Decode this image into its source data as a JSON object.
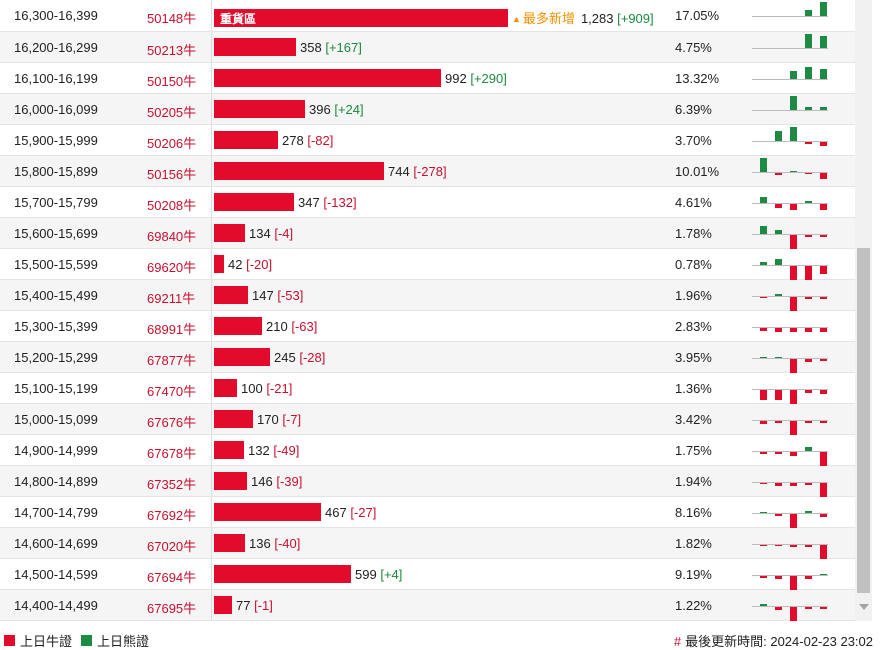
{
  "max_quantity": 1283,
  "colors": {
    "bull": "#e30b2b",
    "bear": "#1e8b45",
    "code": "#c8102e",
    "badge": "#f29100"
  },
  "rows": [
    {
      "range": "16,300-16,399",
      "code": "50148牛",
      "quantity": 1283,
      "qty_text": "1,283",
      "change": "[+909]",
      "dir": "up",
      "pct": "17.05%",
      "zone": "重貨區",
      "badge": "最多新增",
      "spark": [
        [
          "n",
          0
        ],
        [
          "n",
          0
        ],
        [
          "n",
          0
        ],
        [
          "g",
          6
        ],
        [
          "g",
          14
        ]
      ]
    },
    {
      "range": "16,200-16,299",
      "code": "50213牛",
      "quantity": 358,
      "qty_text": "358",
      "change": "[+167]",
      "dir": "up",
      "pct": "4.75%",
      "spark": [
        [
          "n",
          0
        ],
        [
          "n",
          0
        ],
        [
          "n",
          0
        ],
        [
          "g",
          14
        ],
        [
          "g",
          12
        ]
      ]
    },
    {
      "range": "16,100-16,199",
      "code": "50150牛",
      "quantity": 992,
      "qty_text": "992",
      "change": "[+290]",
      "dir": "up",
      "pct": "13.32%",
      "spark": [
        [
          "n",
          0
        ],
        [
          "n",
          0
        ],
        [
          "g",
          8
        ],
        [
          "g",
          12
        ],
        [
          "g",
          10
        ]
      ]
    },
    {
      "range": "16,000-16,099",
      "code": "50205牛",
      "quantity": 396,
      "qty_text": "396",
      "change": "[+24]",
      "dir": "up",
      "pct": "6.39%",
      "spark": [
        [
          "n",
          0
        ],
        [
          "n",
          0
        ],
        [
          "g",
          14
        ],
        [
          "g",
          3
        ],
        [
          "g",
          3
        ]
      ]
    },
    {
      "range": "15,900-15,999",
      "code": "50206牛",
      "quantity": 278,
      "qty_text": "278",
      "change": "[-82]",
      "dir": "dn",
      "pct": "3.70%",
      "spark": [
        [
          "n",
          0
        ],
        [
          "g",
          10
        ],
        [
          "g",
          14
        ],
        [
          "r",
          2
        ],
        [
          "r",
          4
        ]
      ]
    },
    {
      "range": "15,800-15,899",
      "code": "50156牛",
      "quantity": 744,
      "qty_text": "744",
      "change": "[-278]",
      "dir": "dn",
      "pct": "10.01%",
      "spark": [
        [
          "g",
          14
        ],
        [
          "r",
          2
        ],
        [
          "g",
          1
        ],
        [
          "r",
          1
        ],
        [
          "r",
          6
        ]
      ]
    },
    {
      "range": "15,700-15,799",
      "code": "50208牛",
      "quantity": 347,
      "qty_text": "347",
      "change": "[-132]",
      "dir": "dn",
      "pct": "4.61%",
      "spark": [
        [
          "g",
          6
        ],
        [
          "r",
          4
        ],
        [
          "r",
          6
        ],
        [
          "g",
          2
        ],
        [
          "r",
          6
        ]
      ]
    },
    {
      "range": "15,600-15,699",
      "code": "69840牛",
      "quantity": 134,
      "qty_text": "134",
      "change": "[-4]",
      "dir": "dn",
      "pct": "1.78%",
      "spark": [
        [
          "g",
          8
        ],
        [
          "g",
          4
        ],
        [
          "r",
          14
        ],
        [
          "r",
          2
        ],
        [
          "r",
          2
        ]
      ]
    },
    {
      "range": "15,500-15,599",
      "code": "69620牛",
      "quantity": 42,
      "qty_text": "42",
      "change": "[-20]",
      "dir": "dn",
      "pct": "0.78%",
      "spark": [
        [
          "g",
          3
        ],
        [
          "g",
          6
        ],
        [
          "r",
          14
        ],
        [
          "r",
          14
        ],
        [
          "r",
          8
        ]
      ]
    },
    {
      "range": "15,400-15,499",
      "code": "69211牛",
      "quantity": 147,
      "qty_text": "147",
      "change": "[-53]",
      "dir": "dn",
      "pct": "1.96%",
      "spark": [
        [
          "r",
          1
        ],
        [
          "g",
          2
        ],
        [
          "r",
          14
        ],
        [
          "r",
          2
        ],
        [
          "r",
          2
        ]
      ]
    },
    {
      "range": "15,300-15,399",
      "code": "68991牛",
      "quantity": 210,
      "qty_text": "210",
      "change": "[-63]",
      "dir": "dn",
      "pct": "2.83%",
      "spark": [
        [
          "r",
          3
        ],
        [
          "r",
          4
        ],
        [
          "r",
          4
        ],
        [
          "r",
          4
        ],
        [
          "r",
          4
        ]
      ]
    },
    {
      "range": "15,200-15,299",
      "code": "67877牛",
      "quantity": 245,
      "qty_text": "245",
      "change": "[-28]",
      "dir": "dn",
      "pct": "3.95%",
      "spark": [
        [
          "g",
          1
        ],
        [
          "g",
          1
        ],
        [
          "r",
          14
        ],
        [
          "r",
          3
        ],
        [
          "r",
          2
        ]
      ]
    },
    {
      "range": "15,100-15,199",
      "code": "67470牛",
      "quantity": 100,
      "qty_text": "100",
      "change": "[-21]",
      "dir": "dn",
      "pct": "1.36%",
      "spark": [
        [
          "r",
          10
        ],
        [
          "r",
          10
        ],
        [
          "r",
          14
        ],
        [
          "r",
          3
        ],
        [
          "r",
          4
        ]
      ]
    },
    {
      "range": "15,000-15,099",
      "code": "67676牛",
      "quantity": 170,
      "qty_text": "170",
      "change": "[-7]",
      "dir": "dn",
      "pct": "3.42%",
      "spark": [
        [
          "r",
          3
        ],
        [
          "r",
          2
        ],
        [
          "r",
          14
        ],
        [
          "r",
          2
        ],
        [
          "r",
          2
        ]
      ]
    },
    {
      "range": "14,900-14,999",
      "code": "67678牛",
      "quantity": 132,
      "qty_text": "132",
      "change": "[-49]",
      "dir": "dn",
      "pct": "1.75%",
      "spark": [
        [
          "r",
          2
        ],
        [
          "r",
          2
        ],
        [
          "r",
          4
        ],
        [
          "g",
          4
        ],
        [
          "r",
          14
        ]
      ]
    },
    {
      "range": "14,800-14,899",
      "code": "67352牛",
      "quantity": 146,
      "qty_text": "146",
      "change": "[-39]",
      "dir": "dn",
      "pct": "1.94%",
      "spark": [
        [
          "r",
          1
        ],
        [
          "r",
          3
        ],
        [
          "r",
          3
        ],
        [
          "r",
          2
        ],
        [
          "r",
          14
        ]
      ]
    },
    {
      "range": "14,700-14,799",
      "code": "67692牛",
      "quantity": 467,
      "qty_text": "467",
      "change": "[-27]",
      "dir": "dn",
      "pct": "8.16%",
      "spark": [
        [
          "g",
          1
        ],
        [
          "r",
          2
        ],
        [
          "r",
          14
        ],
        [
          "g",
          2
        ],
        [
          "r",
          3
        ]
      ]
    },
    {
      "range": "14,600-14,699",
      "code": "67020牛",
      "quantity": 136,
      "qty_text": "136",
      "change": "[-40]",
      "dir": "dn",
      "pct": "1.82%",
      "spark": [
        [
          "r",
          1
        ],
        [
          "r",
          1
        ],
        [
          "r",
          2
        ],
        [
          "r",
          2
        ],
        [
          "r",
          14
        ]
      ]
    },
    {
      "range": "14,500-14,599",
      "code": "67694牛",
      "quantity": 599,
      "qty_text": "599",
      "change": "[+4]",
      "dir": "up",
      "pct": "9.19%",
      "spark": [
        [
          "r",
          2
        ],
        [
          "r",
          3
        ],
        [
          "r",
          14
        ],
        [
          "r",
          3
        ],
        [
          "g",
          1
        ]
      ]
    },
    {
      "range": "14,400-14,499",
      "code": "67695牛",
      "quantity": 77,
      "qty_text": "77",
      "change": "[-1]",
      "dir": "dn",
      "pct": "1.22%",
      "spark": [
        [
          "g",
          2
        ],
        [
          "r",
          3
        ],
        [
          "r",
          14
        ],
        [
          "r",
          2
        ],
        [
          "r",
          2
        ]
      ]
    }
  ],
  "legend": {
    "bull": "上日牛證",
    "bear": "上日熊證"
  },
  "update": {
    "hash": "#",
    "label": "最後更新時間: 2024-02-23 23:02"
  }
}
